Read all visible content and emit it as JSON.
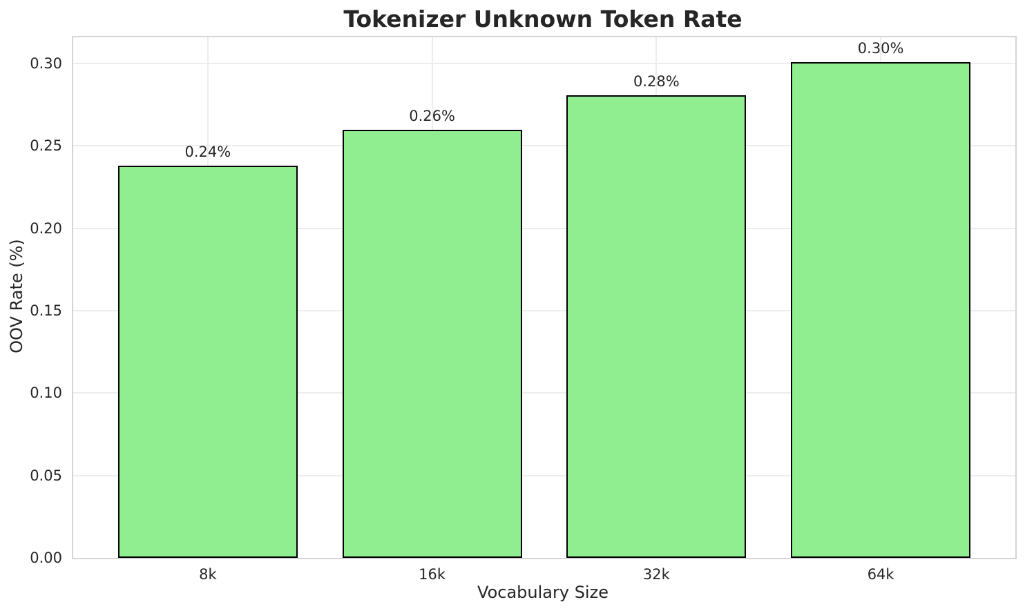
{
  "chart_data": {
    "type": "bar",
    "title": "Tokenizer Unknown Token Rate",
    "xlabel": "Vocabulary Size",
    "ylabel": "OOV Rate (%)",
    "categories": [
      "8k",
      "16k",
      "32k",
      "64k"
    ],
    "values": [
      0.238,
      0.26,
      0.281,
      0.301
    ],
    "bar_labels": [
      "0.24%",
      "0.26%",
      "0.28%",
      "0.30%"
    ],
    "yticks": [
      0.0,
      0.05,
      0.1,
      0.15,
      0.2,
      0.25,
      0.3
    ],
    "ytick_labels": [
      "0.00",
      "0.05",
      "0.10",
      "0.15",
      "0.20",
      "0.25",
      "0.30"
    ],
    "ylim": [
      0,
      0.316
    ],
    "xlim": [
      -0.6,
      3.6
    ],
    "bar_width_units": 0.8,
    "grid": true,
    "legend": "none",
    "bar_color": "#90EE90",
    "bar_edge_color": "#000000",
    "grid_color": "#ececec",
    "spine_color": "#d4d4d4",
    "text_color": "#262626",
    "background_color": "#ffffff"
  }
}
